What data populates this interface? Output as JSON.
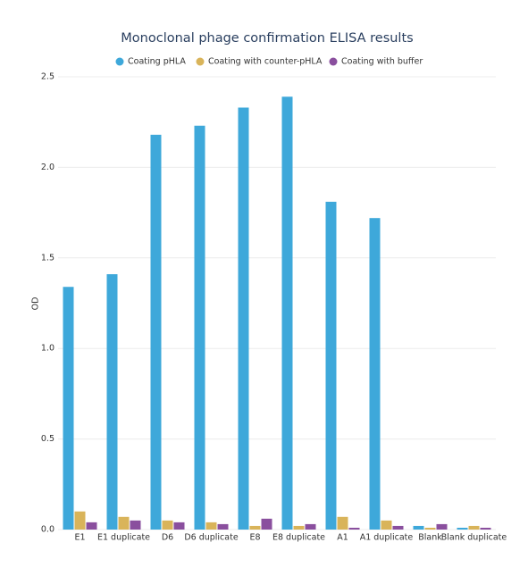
{
  "chart_data": {
    "type": "bar",
    "title": "Monoclonal phage confirmation ELISA results",
    "y_label": "OD",
    "categories": [
      "E1",
      "E1 duplicate",
      "D6",
      "D6 duplicate",
      "E8",
      "E8 duplicate",
      "A1",
      "A1 duplicate",
      "Blank",
      "Blank duplicate"
    ],
    "series": [
      {
        "name": "Coating pHLA",
        "color": "#3ea8da",
        "values": [
          1.34,
          1.41,
          2.18,
          2.23,
          2.33,
          2.39,
          1.81,
          1.72,
          0.02,
          0.01
        ]
      },
      {
        "name": "Coating with counter-pHLA",
        "color": "#d9b45a",
        "values": [
          0.1,
          0.07,
          0.05,
          0.04,
          0.02,
          0.02,
          0.07,
          0.05,
          0.01,
          0.02
        ]
      },
      {
        "name": "Coating with buffer",
        "color": "#8a4f9e",
        "values": [
          0.04,
          0.05,
          0.04,
          0.03,
          0.06,
          0.03,
          0.01,
          0.02,
          0.03,
          0.01
        ]
      }
    ],
    "ylim": [
      0,
      2.5
    ],
    "yticks": [
      {
        "value": 0,
        "label": "0.0"
      },
      0.5,
      {
        "value": 1,
        "label": "1.0"
      },
      1.5,
      {
        "value": 2,
        "label": "2.0"
      },
      2.5
    ],
    "grid": true,
    "legend": "top"
  }
}
